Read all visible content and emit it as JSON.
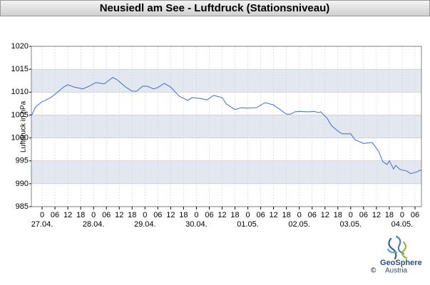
{
  "chart_data": {
    "type": "line",
    "title": "Neusiedl am See - Luftdruck (Stationsniveau)",
    "y_label": "Luftdruck in hPa",
    "x": [
      -5,
      -3,
      0,
      4,
      7,
      10,
      12,
      15,
      19,
      22,
      25,
      29,
      31,
      33,
      35,
      39,
      42,
      44,
      47,
      49,
      52,
      54,
      57,
      60,
      64,
      68,
      70,
      74,
      77,
      80,
      84,
      86,
      90,
      93,
      96,
      100,
      104,
      108,
      111,
      114,
      116,
      118,
      120,
      124,
      127,
      129,
      130,
      133,
      135,
      138,
      140,
      144,
      146,
      149,
      150,
      154,
      157,
      159,
      161,
      162,
      164,
      165,
      167,
      170,
      172,
      175,
      176,
      177
    ],
    "series": [
      {
        "name": "Luftdruck",
        "color": "#4a78d6",
        "values": [
          1004.8,
          1006.8,
          1007.9,
          1008.8,
          1009.9,
          1011.1,
          1011.6,
          1011.1,
          1010.7,
          1011.3,
          1012.1,
          1011.8,
          1012.5,
          1013.2,
          1012.7,
          1011.1,
          1010.2,
          1010.2,
          1011.3,
          1011.3,
          1010.7,
          1011.0,
          1011.9,
          1011.1,
          1009.1,
          1008.2,
          1008.8,
          1008.6,
          1008.3,
          1009.3,
          1008.8,
          1007.4,
          1006.2,
          1006.6,
          1006.5,
          1006.6,
          1007.7,
          1007.2,
          1006.2,
          1005.2,
          1005.2,
          1005.7,
          1005.8,
          1005.7,
          1005.8,
          1005.5,
          1005.7,
          1004.3,
          1002.7,
          1001.5,
          1000.9,
          1000.9,
          999.6,
          999.0,
          998.8,
          999.0,
          997.1,
          994.8,
          994.2,
          995.0,
          993.2,
          994.0,
          993.1,
          992.8,
          992.2,
          992.6,
          992.9,
          992.9
        ]
      }
    ],
    "xlim": [
      -5,
      177
    ],
    "xticks": [
      0,
      {
        "value": 6,
        "label": "06"
      },
      12,
      18,
      {
        "value": 24,
        "label": "0"
      },
      {
        "value": 30,
        "label": "06"
      },
      {
        "value": 36,
        "label": "12"
      },
      {
        "value": 42,
        "label": "18"
      },
      {
        "value": 48,
        "label": "0"
      },
      {
        "value": 54,
        "label": "06"
      },
      {
        "value": 60,
        "label": "12"
      },
      {
        "value": 66,
        "label": "18"
      },
      {
        "value": 72,
        "label": "0"
      },
      {
        "value": 78,
        "label": "06"
      },
      {
        "value": 84,
        "label": "12"
      },
      {
        "value": 90,
        "label": "18"
      },
      {
        "value": 96,
        "label": "0"
      },
      {
        "value": 102,
        "label": "06"
      },
      {
        "value": 108,
        "label": "12"
      },
      {
        "value": 114,
        "label": "18"
      },
      {
        "value": 120,
        "label": "0"
      },
      {
        "value": 126,
        "label": "06"
      },
      {
        "value": 132,
        "label": "12"
      },
      {
        "value": 138,
        "label": "18"
      },
      {
        "value": 144,
        "label": "0"
      },
      {
        "value": 150,
        "label": "06"
      },
      {
        "value": 156,
        "label": "12"
      },
      {
        "value": 162,
        "label": "18"
      },
      {
        "value": 168,
        "label": "0"
      },
      {
        "value": 174,
        "label": "06"
      }
    ],
    "day_labels": [
      {
        "value": 0,
        "label": "27.04."
      },
      {
        "value": 24,
        "label": "28.04."
      },
      {
        "value": 48,
        "label": "29.04."
      },
      {
        "value": 72,
        "label": "30.04."
      },
      {
        "value": 96,
        "label": "01.05."
      },
      {
        "value": 120,
        "label": "02.05."
      },
      {
        "value": 144,
        "label": "03.05."
      },
      {
        "value": 168,
        "label": "04.05."
      }
    ],
    "ylim": [
      985,
      1020
    ],
    "yticks": [
      985,
      990,
      995,
      1000,
      1005,
      1010,
      1015,
      1020
    ],
    "grid": true,
    "logo": {
      "name": "GeoSphere",
      "sub": "Austria",
      "copyright": "©"
    }
  }
}
